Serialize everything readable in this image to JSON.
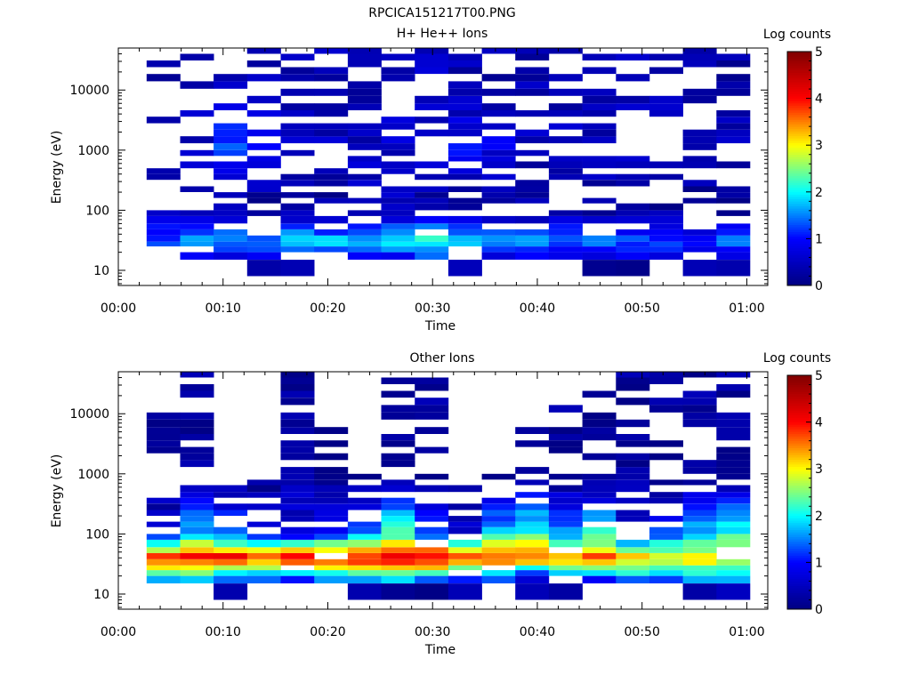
{
  "figure": {
    "title": "RPCICA151217T00.PNG"
  },
  "colormap": {
    "stops": [
      "#000080",
      "#0000ff",
      "#00ffff",
      "#ffff00",
      "#ff0000",
      "#800000"
    ]
  },
  "chart_data": [
    {
      "type": "heatmap",
      "title": "H+ He++ Ions",
      "xlabel": "Time",
      "ylabel": "Energy (eV)",
      "yscale": "log",
      "xlim": [
        0,
        62
      ],
      "ylim": [
        5.6,
        50000
      ],
      "xticks": [
        0,
        10,
        20,
        30,
        40,
        50,
        60
      ],
      "xtick_labels": [
        "00:00",
        "00:10",
        "00:20",
        "00:30",
        "00:40",
        "00:50",
        "01:00"
      ],
      "yticks": [
        10,
        100,
        1000,
        10000
      ],
      "ytick_labels": [
        "10",
        "100",
        "1000",
        "10000"
      ],
      "colorbar": {
        "label": "Log counts",
        "range": [
          0,
          5
        ],
        "ticks": [
          "0",
          "1",
          "2",
          "3",
          "4",
          "5"
        ]
      },
      "time_columns_start_min": [
        2.7,
        5.9,
        9.1,
        12.3,
        15.5,
        18.7,
        21.9,
        25.1,
        28.3,
        31.5,
        34.7,
        37.9,
        41.1,
        44.3,
        47.5,
        50.7,
        53.9,
        57.1
      ],
      "column_width_min": 3.2,
      "energy_low_ev": [
        8,
        15,
        20,
        25,
        30,
        38,
        48,
        60,
        80,
        100,
        130,
        160,
        200,
        250,
        320,
        400,
        500,
        650,
        800,
        1000,
        1300,
        1700,
        2200,
        2800,
        3600,
        4600,
        6000,
        8000,
        10500,
        14000,
        18500,
        24000,
        31000,
        40000
      ],
      "grid": false,
      "legend": "colorbar-right",
      "summary_log_counts_by_energy_ev": [
        {
          "energy_ev": 10,
          "log_counts": [
            0.2,
            0,
            0.3,
            0.3,
            0.2,
            0.3,
            0,
            0,
            0.4,
            0.2,
            0.2,
            0,
            0.2,
            0,
            0,
            0.3,
            0.3,
            0.3
          ]
        },
        {
          "energy_ev": 30,
          "log_counts": [
            1.3,
            1.6,
            1.6,
            1.4,
            1.8,
            1.8,
            1.9,
            2.0,
            2.3,
            1.7,
            1.5,
            1.6,
            1.5,
            1.6,
            1.4,
            1.3,
            1.0,
            1.4
          ]
        },
        {
          "energy_ev": 100,
          "log_counts": [
            0.4,
            0.2,
            0.3,
            0,
            0.3,
            0.2,
            0.5,
            0.4,
            0.3,
            0.2,
            0.2,
            0.3,
            0.2,
            0.2,
            0.3,
            0.2,
            0.2,
            0.2
          ]
        },
        {
          "energy_ev": 1000,
          "log_counts": [
            0.6,
            0.6,
            1.3,
            1.2,
            0.6,
            0.5,
            0.5,
            0.6,
            0.6,
            0.9,
            0.8,
            0.5,
            0.6,
            0.5,
            0.5,
            0.5,
            0.4,
            0.4
          ]
        },
        {
          "energy_ev": 10000,
          "log_counts": [
            0.4,
            0.4,
            0.4,
            0.4,
            0.4,
            0.4,
            0.4,
            0.4,
            0.5,
            0.4,
            0.4,
            0.4,
            0.4,
            0.4,
            0.4,
            0.4,
            0.3,
            0.3
          ]
        }
      ]
    },
    {
      "type": "heatmap",
      "title": "Other Ions",
      "xlabel": "Time",
      "ylabel": "Energy (eV)",
      "yscale": "log",
      "xlim": [
        0,
        62
      ],
      "ylim": [
        5.6,
        50000
      ],
      "xticks": [
        0,
        10,
        20,
        30,
        40,
        50,
        60
      ],
      "xtick_labels": [
        "00:00",
        "00:10",
        "00:20",
        "00:30",
        "00:40",
        "00:50",
        "01:00"
      ],
      "yticks": [
        10,
        100,
        1000,
        10000
      ],
      "ytick_labels": [
        "10",
        "100",
        "1000",
        "10000"
      ],
      "colorbar": {
        "label": "Log counts",
        "range": [
          0,
          5
        ],
        "ticks": [
          "0",
          "1",
          "2",
          "3",
          "4",
          "5"
        ]
      },
      "time_columns_start_min": [
        2.7,
        5.9,
        9.1,
        12.3,
        15.5,
        18.7,
        21.9,
        25.1,
        28.3,
        31.5,
        34.7,
        37.9,
        41.1,
        44.3,
        47.5,
        50.7,
        53.9,
        57.1
      ],
      "column_width_min": 3.2,
      "energy_low_ev": [
        8,
        15,
        20,
        25,
        30,
        38,
        48,
        60,
        80,
        100,
        130,
        160,
        200,
        250,
        320,
        400,
        500,
        650,
        800,
        1000,
        1300,
        1700,
        2200,
        2800,
        3600,
        4600,
        6000,
        8000,
        10500,
        14000,
        18500,
        24000,
        31000,
        40000
      ],
      "grid": false,
      "legend": "colorbar-right",
      "summary_log_counts_by_energy_ev": [
        {
          "energy_ev": 10,
          "log_counts": [
            0.2,
            0.1,
            0,
            0,
            0,
            0.2,
            0.2,
            0,
            0,
            0.3,
            0,
            0.3,
            0.2,
            0,
            0.2,
            0,
            0.3,
            0.2
          ]
        },
        {
          "energy_ev": 20,
          "log_counts": [
            2.2,
            2.5,
            1.8,
            1.6,
            1.6,
            1.8,
            2.0,
            2.2,
            1.9,
            1.2,
            1.4,
            1.0,
            1.2,
            1.5,
            1.8,
            1.8,
            2.0,
            1.9
          ]
        },
        {
          "energy_ev": 40,
          "log_counts": [
            3.8,
            4.0,
            4.1,
            3.6,
            4.2,
            4.3,
            4.0,
            4.1,
            4.4,
            3.8,
            3.9,
            3.7,
            3.6,
            3.7,
            3.3,
            3.0,
            3.1,
            3.1
          ]
        },
        {
          "energy_ev": 100,
          "log_counts": [
            0.8,
            1.8,
            1.4,
            0.9,
            0.6,
            0.9,
            1.5,
            2.3,
            1.3,
            0.7,
            1.9,
            2.2,
            1.7,
            2.1,
            0.7,
            1.2,
            1.8,
            2.1
          ]
        },
        {
          "energy_ev": 1000,
          "log_counts": [
            0,
            0.2,
            0,
            0,
            0.5,
            0.2,
            0,
            0.3,
            0,
            0,
            0,
            0.2,
            0,
            0,
            0.2,
            0,
            0.2,
            0.2
          ]
        },
        {
          "energy_ev": 10000,
          "log_counts": [
            0.2,
            0.2,
            0,
            0,
            0.2,
            0,
            0,
            0.2,
            0.2,
            0,
            0,
            0,
            0.2,
            0.2,
            0.2,
            0.2,
            0.2,
            0.2
          ]
        }
      ]
    }
  ]
}
